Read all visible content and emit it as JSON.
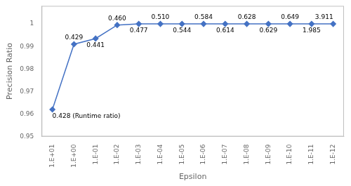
{
  "chart_data": {
    "type": "line",
    "xlabel": "Epsilon",
    "ylabel": "Precision Ratio",
    "categories": [
      "1.E+01",
      "1.E+00",
      "1.E-01",
      "1.E-02",
      "1.E-03",
      "1.E-04",
      "1.E-05",
      "1.E-06",
      "1.E-07",
      "1.E-08",
      "1.E-09",
      "1.E-10",
      "1.E-11",
      "1.E-12"
    ],
    "values": [
      0.962,
      0.991,
      0.9935,
      0.9995,
      1.0,
      1.0,
      1.0,
      1.0,
      1.0,
      1.0,
      1.0,
      1.0,
      1.0,
      1.0
    ],
    "color": "#4472C4",
    "marker": "D",
    "ylim": [
      0.95,
      1.008
    ],
    "yticks": [
      0.95,
      0.96,
      0.97,
      0.98,
      0.99,
      1
    ],
    "grid": false,
    "annotations": [
      {
        "text": "0.428 (Runtime ratio)",
        "x": "1.E+01",
        "y": 0.962
      },
      {
        "text": "0.429",
        "x": "1.E+00",
        "y": 0.991
      },
      {
        "text": "0.441",
        "x": "1.E-01",
        "y": 0.9935
      },
      {
        "text": "0.460",
        "x": "1.E-02",
        "y": 0.9995
      },
      {
        "text": "0.477",
        "x": "1.E-03",
        "y": 1.0
      },
      {
        "text": "0.510",
        "x": "1.E-04",
        "y": 1.0
      },
      {
        "text": "0.544",
        "x": "1.E-05",
        "y": 1.0
      },
      {
        "text": "0.584",
        "x": "1.E-06",
        "y": 1.0
      },
      {
        "text": "0.614",
        "x": "1.E-07",
        "y": 1.0
      },
      {
        "text": "0.628",
        "x": "1.E-08",
        "y": 1.0
      },
      {
        "text": "0.629",
        "x": "1.E-09",
        "y": 1.0
      },
      {
        "text": "0.649",
        "x": "1.E-10",
        "y": 1.0
      },
      {
        "text": "1.985",
        "x": "1.E-11",
        "y": 1.0
      },
      {
        "text": "3.911",
        "x": "1.E-12",
        "y": 1.0
      }
    ]
  }
}
